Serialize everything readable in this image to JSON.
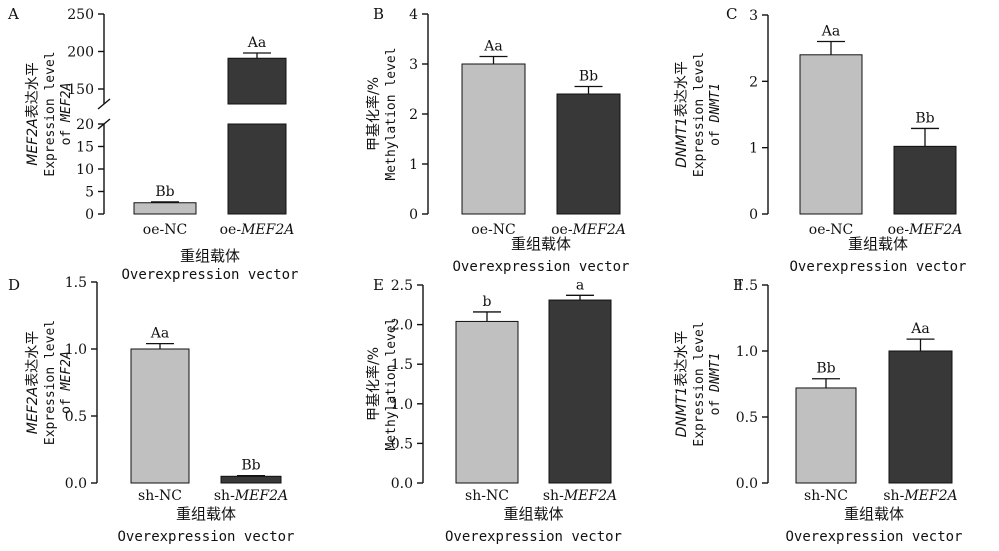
{
  "chart_data": [
    {
      "panel": "A",
      "type": "bar",
      "categories": [
        {
          "prefix": "oe-",
          "name": "NC",
          "italic": false
        },
        {
          "prefix": "oe-",
          "name": "MEF2A",
          "italic": true
        }
      ],
      "values": [
        2.5,
        191
      ],
      "errors": [
        0.2,
        7
      ],
      "labels": [
        "Bb",
        "Aa"
      ],
      "colors": [
        "#c0c0c0",
        "#383838"
      ],
      "broken_axis": true,
      "lower_range": [
        0,
        20
      ],
      "upper_range": [
        130,
        250
      ],
      "lower_ticks": [
        0,
        5,
        10,
        15,
        20
      ],
      "upper_ticks": [
        150,
        200,
        250
      ],
      "ylabel": {
        "gene": "MEF2A",
        "cn": "表达水平",
        "en1": "Expression level",
        "en2": "of "
      },
      "xlabel_cn": "重组载体",
      "xlabel_en": "Overexpression vector"
    },
    {
      "panel": "B",
      "type": "bar",
      "categories": [
        {
          "prefix": "oe-",
          "name": "NC",
          "italic": false
        },
        {
          "prefix": "oe-",
          "name": "MEF2A",
          "italic": true
        }
      ],
      "values": [
        3.0,
        2.4
      ],
      "errors": [
        0.15,
        0.15
      ],
      "labels": [
        "Aa",
        "Bb"
      ],
      "colors": [
        "#c0c0c0",
        "#383838"
      ],
      "ylim": [
        0,
        4
      ],
      "ticks": [
        0,
        1,
        2,
        3,
        4
      ],
      "decimals": 0,
      "ylabel": {
        "cn": "甲基化率/%",
        "en": "Methylation level"
      },
      "xlabel_cn": "重组载体",
      "xlabel_en": "Overexpression vector"
    },
    {
      "panel": "C",
      "type": "bar",
      "categories": [
        {
          "prefix": "oe-",
          "name": "NC",
          "italic": false
        },
        {
          "prefix": "oe-",
          "name": "MEF2A",
          "italic": true
        }
      ],
      "values": [
        2.4,
        1.02
      ],
      "errors": [
        0.2,
        0.27
      ],
      "labels": [
        "Aa",
        "Bb"
      ],
      "colors": [
        "#c0c0c0",
        "#383838"
      ],
      "ylim": [
        0,
        3
      ],
      "ticks": [
        0,
        1,
        2,
        3
      ],
      "decimals": 0,
      "ylabel": {
        "gene": "DNMT1",
        "cn": "表达水平",
        "en1": "Expression level",
        "en2": "of "
      },
      "xlabel_cn": "重组载体",
      "xlabel_en": "Overexpression vector"
    },
    {
      "panel": "D",
      "type": "bar",
      "categories": [
        {
          "prefix": "sh-",
          "name": "NC",
          "italic": false
        },
        {
          "prefix": "sh-",
          "name": "MEF2A",
          "italic": true
        }
      ],
      "values": [
        1.0,
        0.05
      ],
      "errors": [
        0.04,
        0.005
      ],
      "labels": [
        "Aa",
        "Bb"
      ],
      "colors": [
        "#c0c0c0",
        "#383838"
      ],
      "ylim": [
        0,
        1.5
      ],
      "ticks": [
        0,
        0.5,
        1.0,
        1.5
      ],
      "decimals": 1,
      "ylabel": {
        "gene": "MEF2A",
        "cn": "表达水平",
        "en1": "Expression level",
        "en2": "of "
      },
      "xlabel_cn": "重组载体",
      "xlabel_en": "Overexpression vector"
    },
    {
      "panel": "E",
      "type": "bar",
      "categories": [
        {
          "prefix": "sh-",
          "name": "NC",
          "italic": false
        },
        {
          "prefix": "sh-",
          "name": "MEF2A",
          "italic": true
        }
      ],
      "values": [
        2.04,
        2.31
      ],
      "errors": [
        0.12,
        0.06
      ],
      "labels": [
        "b",
        "a"
      ],
      "colors": [
        "#c0c0c0",
        "#383838"
      ],
      "ylim": [
        0,
        2.5
      ],
      "ticks": [
        0,
        0.5,
        1.0,
        1.5,
        2.0,
        2.5
      ],
      "decimals": 1,
      "ylabel": {
        "cn": "甲基化率/%",
        "en": "Methylation level"
      },
      "xlabel_cn": "重组载体",
      "xlabel_en": "Overexpression vector"
    },
    {
      "panel": "F",
      "type": "bar",
      "categories": [
        {
          "prefix": "sh-",
          "name": "NC",
          "italic": false
        },
        {
          "prefix": "sh-",
          "name": "MEF2A",
          "italic": true
        }
      ],
      "values": [
        0.72,
        1.0
      ],
      "errors": [
        0.07,
        0.09
      ],
      "labels": [
        "Bb",
        "Aa"
      ],
      "colors": [
        "#c0c0c0",
        "#383838"
      ],
      "ylim": [
        0,
        1.5
      ],
      "ticks": [
        0,
        0.5,
        1.0,
        1.5
      ],
      "decimals": 1,
      "ylabel": {
        "gene": "DNMT1",
        "cn": "表达水平",
        "en1": "Expression level",
        "en2": "of "
      },
      "xlabel_cn": "重组载体",
      "xlabel_en": "Overexpression vector"
    }
  ]
}
